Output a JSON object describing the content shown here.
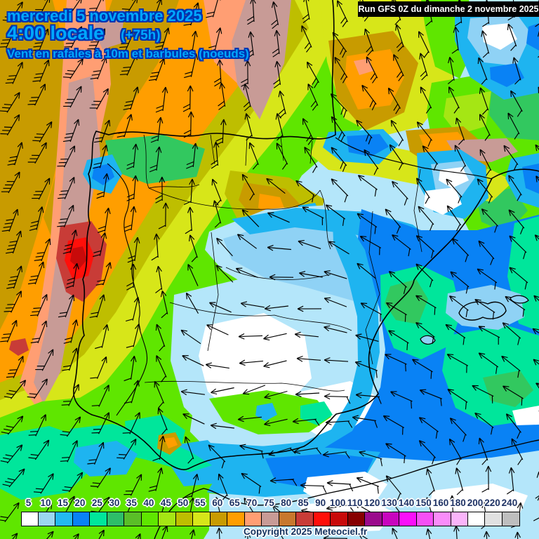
{
  "header": {
    "date_line": "mercredi 5 novembre 2025",
    "time_line": "4:00 locale",
    "offset_label": "(+75h)",
    "subtitle": "Vent en rafales à 10m et barbules (noeuds)"
  },
  "run_info": {
    "label": "Run GFS 0Z du dimanche 2 novembre 2025"
  },
  "copyright": {
    "label": "Copyright 2025 Meteociel.fr"
  },
  "colors": {
    "header_text": "#00a8ff",
    "header_outline": "#0033b0",
    "run_box_bg": "#000000",
    "run_box_text": "#ffffff",
    "scale_label_text": "#1e3264",
    "copyright_text": "#14325f"
  },
  "scale": {
    "unit": "noeuds",
    "values": [
      5,
      10,
      15,
      20,
      25,
      30,
      35,
      40,
      45,
      50,
      55,
      60,
      65,
      70,
      75,
      80,
      85,
      90,
      100,
      110,
      120,
      130,
      140,
      150,
      160,
      180,
      200,
      220,
      240
    ],
    "colors": [
      "#ffffff",
      "#9bd7f0",
      "#23b9f0",
      "#0982f5",
      "#00e69b",
      "#2ebe69",
      "#5abe28",
      "#5fe600",
      "#a5e614",
      "#bebe00",
      "#d7e619",
      "#c89b00",
      "#ff9e00",
      "#ff9e73",
      "#c89b96",
      "#c8782d",
      "#c83c37",
      "#ff0f0a",
      "#c80a0a",
      "#870000",
      "#9b0a8c",
      "#c805be",
      "#fa0ffa",
      "#f550f5",
      "#fa8cfa",
      "#fab4fa",
      "#ffffff",
      "#e1e1e1",
      "#bebebe"
    ]
  },
  "palette": {
    "base": "#b4e6fa",
    "white": "#ffffff",
    "lightblue": "#8fd2f5",
    "midblue": "#1eb4f0",
    "deepblue": "#0982f5",
    "spring": "#00e69b",
    "green": "#32c85f",
    "bright": "#5fe600",
    "yg": "#a5e614",
    "oliveyg": "#d7e619",
    "olive": "#bebe00",
    "mustard": "#c89b00",
    "orange": "#ff9e00",
    "salmon": "#ff9e73",
    "rosy": "#c89b96",
    "brick": "#c83c37",
    "red": "#ff0f0a",
    "darkred": "#c80a0a"
  },
  "wind_grid": {
    "spacing": 96,
    "dirs": [
      [
        62,
        60,
        58,
        72,
        95,
        115,
        108,
        95,
        100
      ],
      [
        64,
        62,
        62,
        85,
        100,
        122,
        118,
        102,
        110
      ],
      [
        66,
        66,
        78,
        90,
        105,
        130,
        128,
        115,
        118
      ],
      [
        70,
        70,
        85,
        95,
        150,
        145,
        132,
        128,
        128
      ],
      [
        70,
        74,
        84,
        115,
        180,
        155,
        138,
        138,
        134
      ],
      [
        62,
        70,
        80,
        150,
        195,
        168,
        145,
        148,
        142
      ],
      [
        56,
        62,
        72,
        190,
        200,
        182,
        162,
        152,
        148
      ],
      [
        52,
        56,
        62,
        80,
        188,
        182,
        125,
        98,
        92
      ],
      [
        50,
        55,
        68,
        84,
        100,
        185,
        102,
        90,
        86
      ]
    ],
    "barbs": [
      [
        3,
        3,
        3,
        2,
        2,
        2,
        1,
        1,
        1
      ],
      [
        3,
        3,
        3,
        2,
        2,
        2,
        2,
        1,
        1
      ],
      [
        3,
        3,
        2,
        2,
        1,
        2,
        1,
        1,
        1
      ],
      [
        4,
        3,
        2,
        1,
        0,
        1,
        1,
        1,
        1
      ],
      [
        4,
        3,
        2,
        0,
        0,
        0,
        1,
        1,
        1
      ],
      [
        3,
        2,
        1,
        0,
        0,
        0,
        1,
        1,
        1
      ],
      [
        3,
        2,
        1,
        0,
        0,
        1,
        1,
        1,
        1
      ],
      [
        3,
        2,
        2,
        1,
        1,
        1,
        1,
        1,
        1
      ],
      [
        2,
        2,
        2,
        1,
        0,
        1,
        1,
        1,
        1
      ]
    ]
  }
}
